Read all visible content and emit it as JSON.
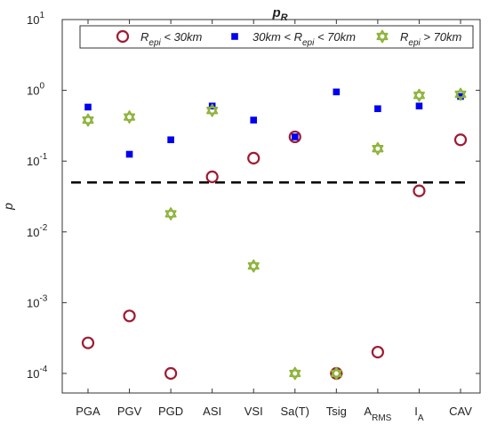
{
  "chart_data": {
    "type": "scatter",
    "title": "p",
    "title_subscript": "R",
    "ylabel": "p",
    "yscale": "log",
    "ylim": [
      0.0001,
      10
    ],
    "yticks": [
      {
        "value": 0.0001,
        "base": "10",
        "exp": "-4"
      },
      {
        "value": 0.001,
        "base": "10",
        "exp": "-3"
      },
      {
        "value": 0.01,
        "base": "10",
        "exp": "-2"
      },
      {
        "value": 0.1,
        "base": "10",
        "exp": "-1"
      },
      {
        "value": 1,
        "base": "10",
        "exp": "0"
      },
      {
        "value": 10,
        "base": "10",
        "exp": "1"
      }
    ],
    "categories": [
      {
        "label": "PGA",
        "sub": ""
      },
      {
        "label": "PGV",
        "sub": ""
      },
      {
        "label": "PGD",
        "sub": ""
      },
      {
        "label": "ASI",
        "sub": ""
      },
      {
        "label": "VSI",
        "sub": ""
      },
      {
        "label": "Sa(T)",
        "sub": ""
      },
      {
        "label": "Tsig",
        "sub": ""
      },
      {
        "label": "A",
        "sub": "RMS"
      },
      {
        "label": "I",
        "sub": "A"
      },
      {
        "label": "CAV",
        "sub": ""
      }
    ],
    "threshold": {
      "value": 0.05,
      "style": "dashed",
      "color": "#000000"
    },
    "grid": false,
    "legend_position": "top",
    "series": [
      {
        "marker": "circle",
        "color": "#9e1b32",
        "legend": {
          "pre": "R",
          "sub": "epi",
          "post": " < 30km"
        },
        "values": [
          0.00027,
          0.00065,
          0.0001,
          0.06,
          0.11,
          0.22,
          0.0001,
          0.0002,
          0.038,
          0.2
        ]
      },
      {
        "marker": "square",
        "color": "#0000ee",
        "legend": {
          "pre": "30km < R",
          "sub": "epi",
          "post": " < 70km"
        },
        "values": [
          0.58,
          0.125,
          0.2,
          0.6,
          0.38,
          0.22,
          0.95,
          0.55,
          0.6,
          0.82
        ]
      },
      {
        "marker": "hexagram",
        "color": "#8db33a",
        "legend": {
          "pre": "R",
          "sub": "epi",
          "post": " > 70km"
        },
        "values": [
          0.38,
          0.42,
          0.018,
          0.52,
          0.0033,
          0.0001,
          0.0001,
          0.15,
          0.85,
          0.88
        ]
      }
    ]
  }
}
